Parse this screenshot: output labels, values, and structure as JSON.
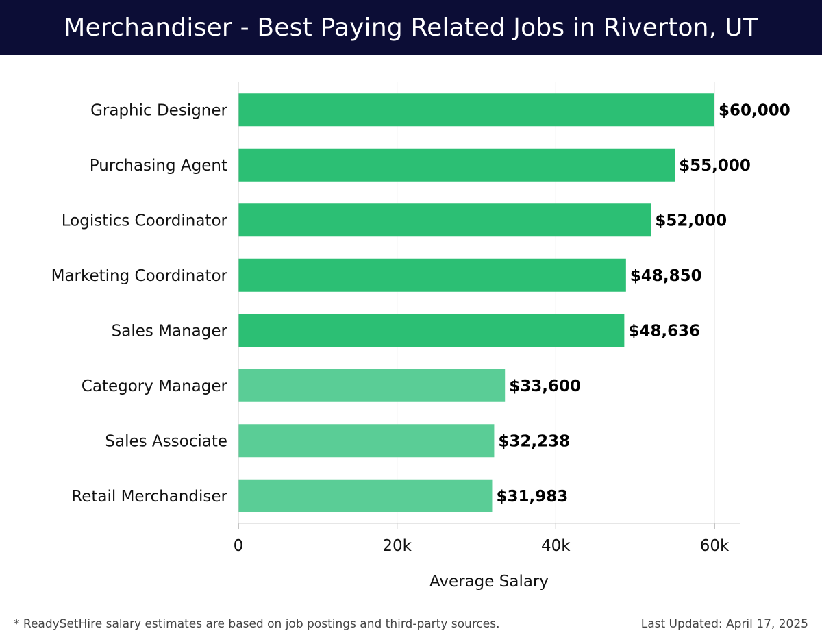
{
  "header": {
    "title": "Merchandiser - Best Paying Related Jobs in Riverton, UT"
  },
  "chart_data": {
    "type": "bar",
    "orientation": "horizontal",
    "categories": [
      "Graphic Designer",
      "Purchasing Agent",
      "Logistics Coordinator",
      "Marketing Coordinator",
      "Sales Manager",
      "Category Manager",
      "Sales Associate",
      "Retail Merchandiser"
    ],
    "values": [
      60000,
      55000,
      52000,
      48850,
      48636,
      33600,
      32238,
      31983
    ],
    "value_labels": [
      "$60,000",
      "$55,000",
      "$52,000",
      "$48,850",
      "$48,636",
      "$33,600",
      "$32,238",
      "$31,983"
    ],
    "xlabel": "Average Salary",
    "xlim": [
      0,
      63000
    ],
    "xticks": [
      0,
      20000,
      40000,
      60000
    ],
    "xtick_labels": [
      "0",
      "20k",
      "40k",
      "60k"
    ],
    "grid": true,
    "colors": {
      "high": "#2cbf74",
      "low": "#5acd96",
      "grid": "#e0e0e0",
      "axis": "#cccccc"
    }
  },
  "footer": {
    "note": "* ReadySetHire salary estimates are based on job postings and third-party sources.",
    "updated": "Last Updated: April 17, 2025"
  }
}
